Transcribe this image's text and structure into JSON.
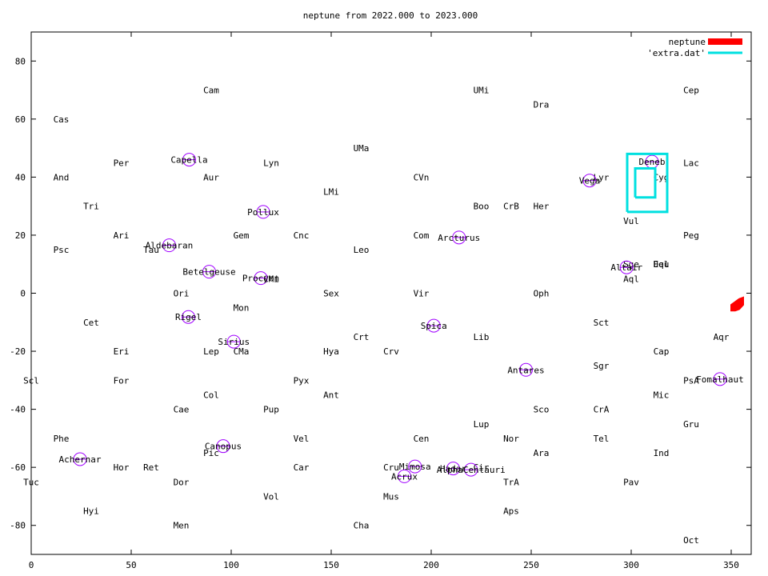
{
  "chart_data": {
    "type": "scatter",
    "title": "neptune from 2022.000 to 2023.000",
    "xlabel": "",
    "ylabel": "",
    "xlim": [
      0,
      360
    ],
    "ylim": [
      -90,
      90
    ],
    "xticks": [
      0,
      50,
      100,
      150,
      200,
      250,
      300,
      350
    ],
    "yticks": [
      -80,
      -60,
      -40,
      -20,
      0,
      20,
      40,
      60,
      80
    ],
    "grid": false,
    "legend_position": "top-right",
    "colors": {
      "neptune": "#ff0000",
      "extra": "#00e0e0",
      "star_circle": "#a000ff",
      "axis": "#000000"
    },
    "series": [
      {
        "name": "neptune",
        "style": "filled-band",
        "points": [
          [
            350,
            -4
          ],
          [
            352,
            -3
          ],
          [
            354,
            -2
          ],
          [
            356,
            -1.5
          ],
          [
            356,
            -4
          ],
          [
            354,
            -5.5
          ],
          [
            352,
            -6
          ],
          [
            350,
            -6
          ]
        ]
      },
      {
        "name": "'extra.dat'",
        "style": "line",
        "paths": [
          [
            [
              298,
              28
            ],
            [
              318,
              28
            ],
            [
              318,
              48
            ],
            [
              298,
              48
            ],
            [
              298,
              28
            ]
          ],
          [
            [
              302,
              33
            ],
            [
              312,
              33
            ],
            [
              312,
              43
            ],
            [
              302,
              43
            ],
            [
              302,
              33
            ]
          ]
        ]
      }
    ],
    "stars": [
      {
        "name": "Capella",
        "x": 79,
        "y": 46
      },
      {
        "name": "Pollux",
        "x": 116,
        "y": 28
      },
      {
        "name": "Aldebaran",
        "x": 69,
        "y": 16.5
      },
      {
        "name": "Betelgeuse",
        "x": 89,
        "y": 7.4
      },
      {
        "name": "Procyon",
        "x": 114.8,
        "y": 5.2
      },
      {
        "name": "Rigel",
        "x": 78.6,
        "y": -8.2
      },
      {
        "name": "Sirius",
        "x": 101.3,
        "y": -16.7
      },
      {
        "name": "Canopus",
        "x": 96,
        "y": -52.7
      },
      {
        "name": "Achernar",
        "x": 24.4,
        "y": -57.2
      },
      {
        "name": "Arcturus",
        "x": 213.9,
        "y": 19.2
      },
      {
        "name": "Spica",
        "x": 201.3,
        "y": -11.2
      },
      {
        "name": "Antares",
        "x": 247.4,
        "y": -26.4
      },
      {
        "name": "Mimosa",
        "x": 191.9,
        "y": -59.7
      },
      {
        "name": "Acrux",
        "x": 186.6,
        "y": -63.1
      },
      {
        "name": "Hadar",
        "x": 211,
        "y": -60.4
      },
      {
        "name": "AlphaCentauri",
        "x": 219.9,
        "y": -60.8
      },
      {
        "name": "Vega",
        "x": 279.2,
        "y": 38.8
      },
      {
        "name": "Deneb",
        "x": 310.4,
        "y": 45.3
      },
      {
        "name": "Altair",
        "x": 297.7,
        "y": 8.9
      },
      {
        "name": "Fomalhaut",
        "x": 344.4,
        "y": -29.6
      }
    ],
    "constellations": [
      {
        "name": "Cas",
        "x": 15,
        "y": 60
      },
      {
        "name": "And",
        "x": 15,
        "y": 40
      },
      {
        "name": "Tri",
        "x": 30,
        "y": 30
      },
      {
        "name": "Psc",
        "x": 15,
        "y": 15
      },
      {
        "name": "Per",
        "x": 45,
        "y": 45
      },
      {
        "name": "Ari",
        "x": 45,
        "y": 20
      },
      {
        "name": "Tau",
        "x": 60,
        "y": 15
      },
      {
        "name": "Cam",
        "x": 90,
        "y": 70
      },
      {
        "name": "Aur",
        "x": 90,
        "y": 40
      },
      {
        "name": "Gem",
        "x": 105,
        "y": 20
      },
      {
        "name": "Ori",
        "x": 75,
        "y": 0
      },
      {
        "name": "Mon",
        "x": 105,
        "y": -5
      },
      {
        "name": "CMi",
        "x": 120,
        "y": 5
      },
      {
        "name": "Lyn",
        "x": 120,
        "y": 45
      },
      {
        "name": "Cnc",
        "x": 135,
        "y": 20
      },
      {
        "name": "LMi",
        "x": 150,
        "y": 35
      },
      {
        "name": "UMa",
        "x": 165,
        "y": 50
      },
      {
        "name": "Leo",
        "x": 165,
        "y": 15
      },
      {
        "name": "Sex",
        "x": 150,
        "y": 0
      },
      {
        "name": "Cet",
        "x": 30,
        "y": -10
      },
      {
        "name": "Eri",
        "x": 45,
        "y": -20
      },
      {
        "name": "Lep",
        "x": 90,
        "y": -20
      },
      {
        "name": "CMa",
        "x": 105,
        "y": -20
      },
      {
        "name": "Hya",
        "x": 150,
        "y": -20
      },
      {
        "name": "Crt",
        "x": 165,
        "y": -15
      },
      {
        "name": "Crv",
        "x": 180,
        "y": -20
      },
      {
        "name": "Scl",
        "x": 0,
        "y": -30
      },
      {
        "name": "For",
        "x": 45,
        "y": -30
      },
      {
        "name": "Pyx",
        "x": 135,
        "y": -30
      },
      {
        "name": "Col",
        "x": 90,
        "y": -35
      },
      {
        "name": "Ant",
        "x": 150,
        "y": -35
      },
      {
        "name": "Cae",
        "x": 75,
        "y": -40
      },
      {
        "name": "Pup",
        "x": 120,
        "y": -40
      },
      {
        "name": "Phe",
        "x": 15,
        "y": -50
      },
      {
        "name": "Vel",
        "x": 135,
        "y": -50
      },
      {
        "name": "Pic",
        "x": 90,
        "y": -55
      },
      {
        "name": "Hor",
        "x": 45,
        "y": -60
      },
      {
        "name": "Ret",
        "x": 60,
        "y": -60
      },
      {
        "name": "Car",
        "x": 135,
        "y": -60
      },
      {
        "name": "Tuc",
        "x": 0,
        "y": -65
      },
      {
        "name": "Dor",
        "x": 75,
        "y": -65
      },
      {
        "name": "Vol",
        "x": 120,
        "y": -70
      },
      {
        "name": "Hyi",
        "x": 30,
        "y": -75
      },
      {
        "name": "Men",
        "x": 75,
        "y": -80
      },
      {
        "name": "Cha",
        "x": 165,
        "y": -80
      },
      {
        "name": "Mus",
        "x": 180,
        "y": -70
      },
      {
        "name": "Cru",
        "x": 180,
        "y": -60
      },
      {
        "name": "Cen",
        "x": 195,
        "y": -50
      },
      {
        "name": "Cir",
        "x": 225,
        "y": -60
      },
      {
        "name": "TrA",
        "x": 240,
        "y": -65
      },
      {
        "name": "Aps",
        "x": 240,
        "y": -75
      },
      {
        "name": "Nor",
        "x": 240,
        "y": -50
      },
      {
        "name": "Lup",
        "x": 225,
        "y": -45
      },
      {
        "name": "Ara",
        "x": 255,
        "y": -55
      },
      {
        "name": "Sco",
        "x": 255,
        "y": -40
      },
      {
        "name": "CrA",
        "x": 285,
        "y": -40
      },
      {
        "name": "Tel",
        "x": 285,
        "y": -50
      },
      {
        "name": "Pav",
        "x": 300,
        "y": -65
      },
      {
        "name": "Ind",
        "x": 315,
        "y": -55
      },
      {
        "name": "Oct",
        "x": 330,
        "y": -85
      },
      {
        "name": "Gru",
        "x": 330,
        "y": -45
      },
      {
        "name": "Mic",
        "x": 315,
        "y": -35
      },
      {
        "name": "PsA",
        "x": 330,
        "y": -30
      },
      {
        "name": "Cap",
        "x": 315,
        "y": -20
      },
      {
        "name": "Aqr",
        "x": 345,
        "y": -15
      },
      {
        "name": "Sgr",
        "x": 285,
        "y": -25
      },
      {
        "name": "Sct",
        "x": 285,
        "y": -10
      },
      {
        "name": "Lib",
        "x": 225,
        "y": -15
      },
      {
        "name": "Vir",
        "x": 195,
        "y": 0
      },
      {
        "name": "Oph",
        "x": 255,
        "y": 0
      },
      {
        "name": "Aql",
        "x": 300,
        "y": 5
      },
      {
        "name": "Sge",
        "x": 300,
        "y": 10
      },
      {
        "name": "Equ",
        "x": 315,
        "y": 10
      },
      {
        "name": "Del",
        "x": 315,
        "y": 10
      },
      {
        "name": "Peg",
        "x": 330,
        "y": 20
      },
      {
        "name": "Vul",
        "x": 300,
        "y": 25
      },
      {
        "name": "Cyg",
        "x": 315,
        "y": 40
      },
      {
        "name": "Lac",
        "x": 330,
        "y": 45
      },
      {
        "name": "Cep",
        "x": 330,
        "y": 70
      },
      {
        "name": "Lyr",
        "x": 285,
        "y": 40
      },
      {
        "name": "Her",
        "x": 255,
        "y": 30
      },
      {
        "name": "CrB",
        "x": 240,
        "y": 30
      },
      {
        "name": "Boo",
        "x": 225,
        "y": 30
      },
      {
        "name": "Dra",
        "x": 255,
        "y": 65
      },
      {
        "name": "UMi",
        "x": 225,
        "y": 70
      },
      {
        "name": "CVn",
        "x": 195,
        "y": 40
      },
      {
        "name": "Com",
        "x": 195,
        "y": 20
      }
    ]
  }
}
